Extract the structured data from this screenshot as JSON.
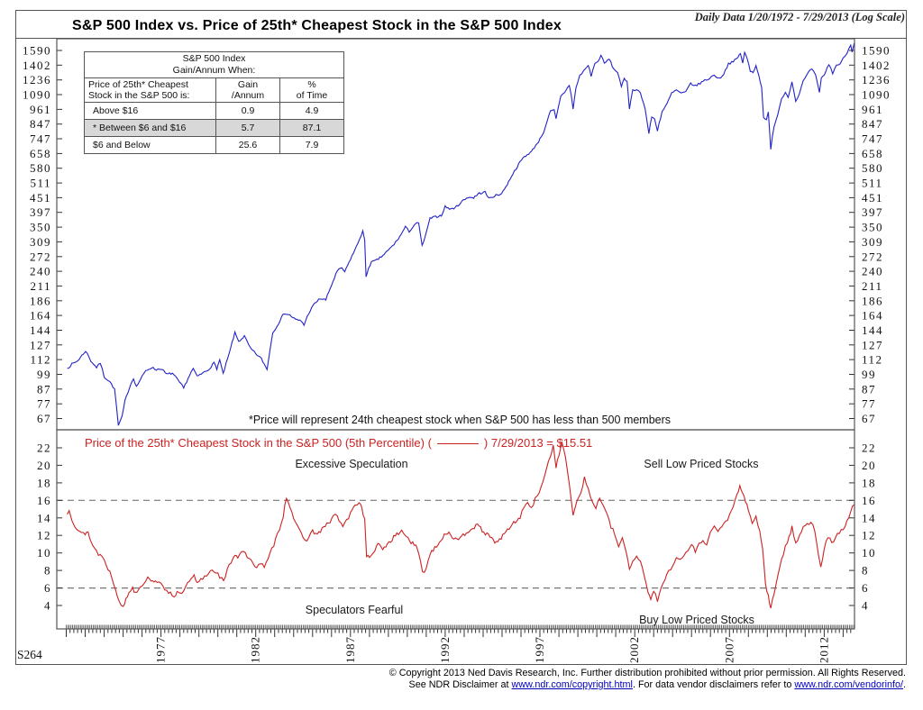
{
  "header": {
    "title": "S&P 500 Index vs. Price of 25th* Cheapest Stock in the S&P 500 Index",
    "daily_data": "Daily Data 1/20/1972 - 7/29/2013 (Log Scale)"
  },
  "table": {
    "title": "S&P 500 Index\nGain/Annum When:",
    "col_headers": [
      "Price of 25th* Cheapest\nStock in the S&P 500 is:",
      "Gain\n/Annum",
      "%\nof Time"
    ],
    "rows": [
      {
        "label": "Above $16",
        "gain": "0.9",
        "pct": "4.9",
        "highlight": false
      },
      {
        "label": "*  Between $6 and  $16",
        "gain": "5.7",
        "pct": "87.1",
        "highlight": true
      },
      {
        "label": "$6 and Below",
        "gain": "25.6",
        "pct": "7.9",
        "highlight": false
      }
    ]
  },
  "annotations": {
    "footnote": "*Price will represent 24th cheapest stock when S&P 500 has less than 500 members",
    "excessive_speculation": "Excessive Speculation",
    "sell_low": "Sell Low Priced Stocks",
    "speculators_fearful": "Speculators Fearful",
    "buy_low": "Buy Low Priced Stocks"
  },
  "bottom_panel": {
    "label_prefix": "Price of the 25th* Cheapest Stock in the S&P 500 (5th Percentile) (",
    "label_suffix": ") 7/29/2013 = $15.51"
  },
  "chart_id": "S264",
  "footer": {
    "line1": "© Copyright 2013 Ned Davis Research, Inc.  Further distribution prohibited without prior permission.  All Rights Reserved.",
    "line2_prefix": "See NDR Disclaimer at ",
    "link1": "www.ndr.com/copyright.html",
    "line2_mid": ". For data vendor disclaimers refer to ",
    "link2": "www.ndr.com/vendorinfo/",
    "line2_suffix": "."
  },
  "colors": {
    "sp500_line": "#2323c8",
    "cheapest_line": "#cc2222",
    "highlight_row": "#d8d8d8",
    "dashed_line": "#777777",
    "axis": "#555555",
    "link": "#0000bb"
  },
  "chart_data": [
    {
      "type": "line",
      "title": "S&P 500 Index",
      "yscale": "log",
      "xlim": [
        1971.5,
        2013.6
      ],
      "y_ticks": [
        1590,
        1402,
        1236,
        1090,
        961,
        847,
        747,
        658,
        580,
        511,
        451,
        397,
        350,
        309,
        272,
        240,
        211,
        186,
        164,
        144,
        127,
        112,
        99,
        87,
        77,
        67
      ],
      "x_labeled_years": [
        1977,
        1982,
        1987,
        1992,
        1997,
        2002,
        2007,
        2012
      ],
      "series": [
        {
          "name": "S&P 500 Index",
          "x": [
            1972.05,
            1972.3,
            1972.6,
            1972.9,
            1973.02,
            1973.3,
            1973.6,
            1973.8,
            1974.0,
            1974.3,
            1974.55,
            1974.75,
            1974.95,
            1975.1,
            1975.4,
            1975.55,
            1975.7,
            1976.0,
            1976.2,
            1976.5,
            1976.75,
            1977.0,
            1977.3,
            1977.6,
            1977.9,
            1978.2,
            1978.5,
            1978.7,
            1978.9,
            1979.2,
            1979.5,
            1979.8,
            1979.95,
            1980.1,
            1980.28,
            1980.6,
            1980.9,
            1981.1,
            1981.4,
            1981.7,
            1982.0,
            1982.3,
            1982.6,
            1982.9,
            1983.2,
            1983.5,
            1983.8,
            1984.1,
            1984.4,
            1984.55,
            1984.8,
            1985.1,
            1985.4,
            1985.7,
            1986.0,
            1986.3,
            1986.55,
            1986.7,
            1987.0,
            1987.3,
            1987.65,
            1987.75,
            1987.82,
            1987.95,
            1988.1,
            1988.4,
            1988.7,
            1989.0,
            1989.3,
            1989.6,
            1989.9,
            1990.1,
            1990.45,
            1990.6,
            1990.78,
            1991.0,
            1991.2,
            1991.5,
            1991.8,
            1992.0,
            1992.3,
            1992.6,
            1992.9,
            1993.2,
            1993.5,
            1993.8,
            1994.1,
            1994.3,
            1994.6,
            1994.9,
            1995.2,
            1995.5,
            1995.8,
            1996.1,
            1996.4,
            1996.55,
            1996.7,
            1997.0,
            1997.2,
            1997.55,
            1997.75,
            1997.85,
            1998.1,
            1998.3,
            1998.55,
            1998.65,
            1998.75,
            1998.9,
            1999.1,
            1999.3,
            1999.55,
            1999.7,
            1999.9,
            2000.05,
            2000.22,
            2000.4,
            2000.65,
            2000.9,
            2001.1,
            2001.3,
            2001.45,
            2001.6,
            2001.72,
            2001.9,
            2002.1,
            2002.3,
            2002.55,
            2002.75,
            2002.9,
            2003.05,
            2003.2,
            2003.45,
            2003.7,
            2003.95,
            2004.2,
            2004.45,
            2004.7,
            2004.95,
            2005.2,
            2005.45,
            2005.7,
            2005.95,
            2006.2,
            2006.45,
            2006.7,
            2006.95,
            2007.2,
            2007.45,
            2007.58,
            2007.7,
            2007.8,
            2007.95,
            2008.1,
            2008.25,
            2008.4,
            2008.55,
            2008.7,
            2008.8,
            2008.95,
            2009.05,
            2009.18,
            2009.35,
            2009.55,
            2009.75,
            2009.95,
            2010.1,
            2010.3,
            2010.5,
            2010.7,
            2010.9,
            2011.1,
            2011.35,
            2011.55,
            2011.75,
            2011.85,
            2012.0,
            2012.25,
            2012.45,
            2012.65,
            2012.85,
            2013.0,
            2013.2,
            2013.4,
            2013.47,
            2013.58
          ],
          "y": [
            103,
            107,
            110,
            117,
            120,
            110,
            104,
            108,
            96,
            92,
            86,
            63,
            68,
            78,
            90,
            95,
            88,
            96,
            101,
            104,
            102,
            103,
            98,
            99,
            93,
            87,
            97,
            103,
            96,
            99,
            102,
            108,
            103,
            111,
            98,
            117,
            140,
            130,
            136,
            123,
            117,
            112,
            102,
            140,
            152,
            166,
            163,
            157,
            155,
            150,
            166,
            180,
            188,
            186,
            211,
            238,
            245,
            236,
            264,
            292,
            336,
            310,
            225,
            245,
            257,
            262,
            272,
            285,
            300,
            320,
            348,
            335,
            360,
            358,
            295,
            330,
            375,
            380,
            385,
            415,
            405,
            415,
            435,
            450,
            448,
            465,
            470,
            445,
            455,
            460,
            490,
            540,
            585,
            630,
            655,
            665,
            690,
            740,
            790,
            940,
            950,
            880,
            1070,
            1110,
            1180,
            1090,
            960,
            1150,
            1280,
            1330,
            1400,
            1280,
            1420,
            1440,
            1527,
            1420,
            1480,
            1350,
            1320,
            1170,
            1240,
            1210,
            966,
            1140,
            1130,
            1110,
            960,
            777,
            900,
            880,
            800,
            940,
            1000,
            1100,
            1130,
            1100,
            1110,
            1200,
            1170,
            1200,
            1230,
            1250,
            1290,
            1245,
            1300,
            1420,
            1440,
            1500,
            1553,
            1430,
            1560,
            1470,
            1330,
            1320,
            1400,
            1280,
            1160,
            900,
            870,
            930,
            676,
            830,
            920,
            1050,
            1110,
            1070,
            1210,
            1030,
            1100,
            1220,
            1290,
            1360,
            1280,
            1100,
            1250,
            1290,
            1410,
            1310,
            1400,
            1420,
            1480,
            1560,
            1665,
            1580,
            1690
          ]
        }
      ]
    },
    {
      "type": "line",
      "title": "Price of the 25th* Cheapest Stock in the S&P 500 (5th Percentile)",
      "yscale": "linear",
      "xlim": [
        1971.5,
        2013.6
      ],
      "y_ticks": [
        22,
        20,
        18,
        16,
        14,
        12,
        10,
        8,
        6,
        4
      ],
      "thresholds": [
        16,
        6
      ],
      "last_value_label": "7/29/2013 = $15.51",
      "series": [
        {
          "name": "Price of the 25th* Cheapest Stock",
          "x": [
            1972.05,
            1972.15,
            1972.3,
            1972.45,
            1972.6,
            1972.8,
            1973.0,
            1973.15,
            1973.3,
            1973.5,
            1973.7,
            1973.9,
            1974.1,
            1974.3,
            1974.5,
            1974.7,
            1974.9,
            1975.0,
            1975.15,
            1975.3,
            1975.5,
            1975.65,
            1975.8,
            1976.0,
            1976.2,
            1976.4,
            1976.55,
            1976.7,
            1976.9,
            1977.1,
            1977.3,
            1977.5,
            1977.7,
            1977.85,
            1978.0,
            1978.2,
            1978.4,
            1978.6,
            1978.75,
            1978.9,
            1979.1,
            1979.3,
            1979.5,
            1979.7,
            1979.9,
            1980.1,
            1980.3,
            1980.5,
            1980.7,
            1980.9,
            1981.05,
            1981.25,
            1981.45,
            1981.65,
            1981.85,
            1982.05,
            1982.25,
            1982.45,
            1982.65,
            1982.85,
            1983.05,
            1983.25,
            1983.45,
            1983.62,
            1983.8,
            1984.0,
            1984.2,
            1984.4,
            1984.6,
            1984.8,
            1985.0,
            1985.25,
            1985.5,
            1985.75,
            1986.0,
            1986.2,
            1986.4,
            1986.6,
            1986.8,
            1987.0,
            1987.25,
            1987.45,
            1987.6,
            1987.75,
            1987.85,
            1988.0,
            1988.2,
            1988.45,
            1988.7,
            1988.95,
            1989.2,
            1989.45,
            1989.7,
            1989.95,
            1990.2,
            1990.45,
            1990.6,
            1990.8,
            1991.0,
            1991.2,
            1991.45,
            1991.7,
            1991.95,
            1992.2,
            1992.45,
            1992.7,
            1992.95,
            1993.2,
            1993.45,
            1993.7,
            1993.95,
            1994.2,
            1994.45,
            1994.7,
            1994.95,
            1995.2,
            1995.45,
            1995.7,
            1995.95,
            1996.15,
            1996.35,
            1996.55,
            1996.75,
            1996.95,
            1997.15,
            1997.35,
            1997.55,
            1997.7,
            1997.85,
            1998.0,
            1998.15,
            1998.35,
            1998.55,
            1998.75,
            1998.95,
            1999.15,
            1999.35,
            1999.55,
            1999.75,
            1999.95,
            2000.15,
            2000.35,
            2000.55,
            2000.75,
            2000.95,
            2001.15,
            2001.35,
            2001.55,
            2001.72,
            2001.9,
            2002.1,
            2002.3,
            2002.5,
            2002.7,
            2002.85,
            2003.0,
            2003.2,
            2003.4,
            2003.6,
            2003.8,
            2004.0,
            2004.2,
            2004.4,
            2004.6,
            2004.8,
            2005.0,
            2005.2,
            2005.4,
            2005.6,
            2005.8,
            2006.0,
            2006.2,
            2006.4,
            2006.6,
            2006.8,
            2007.0,
            2007.2,
            2007.4,
            2007.55,
            2007.7,
            2007.85,
            2008.0,
            2008.2,
            2008.4,
            2008.6,
            2008.75,
            2008.9,
            2009.05,
            2009.18,
            2009.35,
            2009.55,
            2009.75,
            2009.95,
            2010.15,
            2010.3,
            2010.5,
            2010.7,
            2010.9,
            2011.1,
            2011.3,
            2011.5,
            2011.7,
            2011.82,
            2012.0,
            2012.2,
            2012.4,
            2012.6,
            2012.8,
            2013.0,
            2013.2,
            2013.4,
            2013.58
          ],
          "y": [
            14.4,
            14.8,
            13.9,
            13.2,
            12.8,
            12.3,
            12.0,
            12.5,
            11.3,
            10.5,
            9.9,
            9.6,
            8.7,
            7.8,
            6.6,
            5.2,
            4.1,
            3.7,
            4.7,
            5.5,
            6.0,
            5.5,
            5.9,
            6.4,
            6.9,
            7.2,
            6.7,
            7.0,
            6.5,
            6.1,
            5.8,
            5.4,
            5.1,
            5.5,
            5.2,
            5.7,
            6.4,
            7.0,
            7.3,
            6.5,
            6.9,
            7.3,
            7.7,
            8.1,
            7.9,
            7.3,
            6.7,
            8.0,
            9.0,
            9.9,
            9.5,
            10.3,
            9.9,
            9.2,
            8.8,
            8.5,
            8.9,
            8.3,
            9.2,
            10.4,
            11.5,
            12.8,
            14.3,
            16.4,
            15.4,
            14.1,
            12.9,
            12.1,
            11.3,
            11.9,
            12.5,
            12.1,
            12.7,
            13.2,
            13.8,
            14.5,
            13.7,
            13.1,
            13.6,
            14.5,
            15.4,
            15.9,
            15.1,
            13.8,
            9.8,
            9.3,
            10.1,
            10.9,
            10.5,
            11.0,
            11.6,
            12.1,
            12.5,
            12.0,
            11.2,
            10.7,
            10.0,
            7.7,
            8.3,
            9.9,
            10.7,
            11.2,
            12.1,
            12.4,
            11.7,
            11.3,
            12.0,
            12.5,
            12.9,
            13.1,
            12.6,
            12.1,
            11.6,
            11.2,
            11.7,
            12.4,
            13.0,
            13.6,
            14.1,
            15.1,
            16.0,
            15.0,
            16.1,
            16.9,
            18.2,
            19.5,
            21.0,
            22.4,
            19.9,
            21.0,
            22.6,
            20.9,
            18.0,
            14.5,
            15.8,
            17.0,
            18.5,
            17.2,
            15.9,
            15.1,
            16.4,
            15.3,
            14.2,
            13.0,
            12.1,
            10.7,
            11.5,
            10.3,
            8.1,
            9.1,
            9.7,
            9.1,
            7.5,
            5.5,
            4.9,
            5.7,
            4.5,
            5.9,
            7.1,
            7.9,
            8.7,
            9.5,
            9.1,
            9.7,
            10.3,
            10.9,
            10.3,
            10.9,
            11.5,
            11.1,
            12.3,
            13.1,
            12.5,
            12.9,
            13.5,
            14.3,
            15.5,
            16.5,
            17.5,
            16.8,
            16.0,
            14.7,
            13.3,
            14.1,
            12.5,
            10.5,
            6.5,
            5.0,
            3.6,
            5.3,
            7.5,
            9.3,
            10.7,
            11.7,
            12.9,
            11.1,
            12.1,
            13.1,
            13.3,
            13.5,
            12.7,
            9.5,
            8.3,
            10.5,
            11.9,
            11.1,
            11.7,
            12.3,
            12.7,
            13.7,
            14.7,
            15.51
          ]
        }
      ]
    }
  ]
}
